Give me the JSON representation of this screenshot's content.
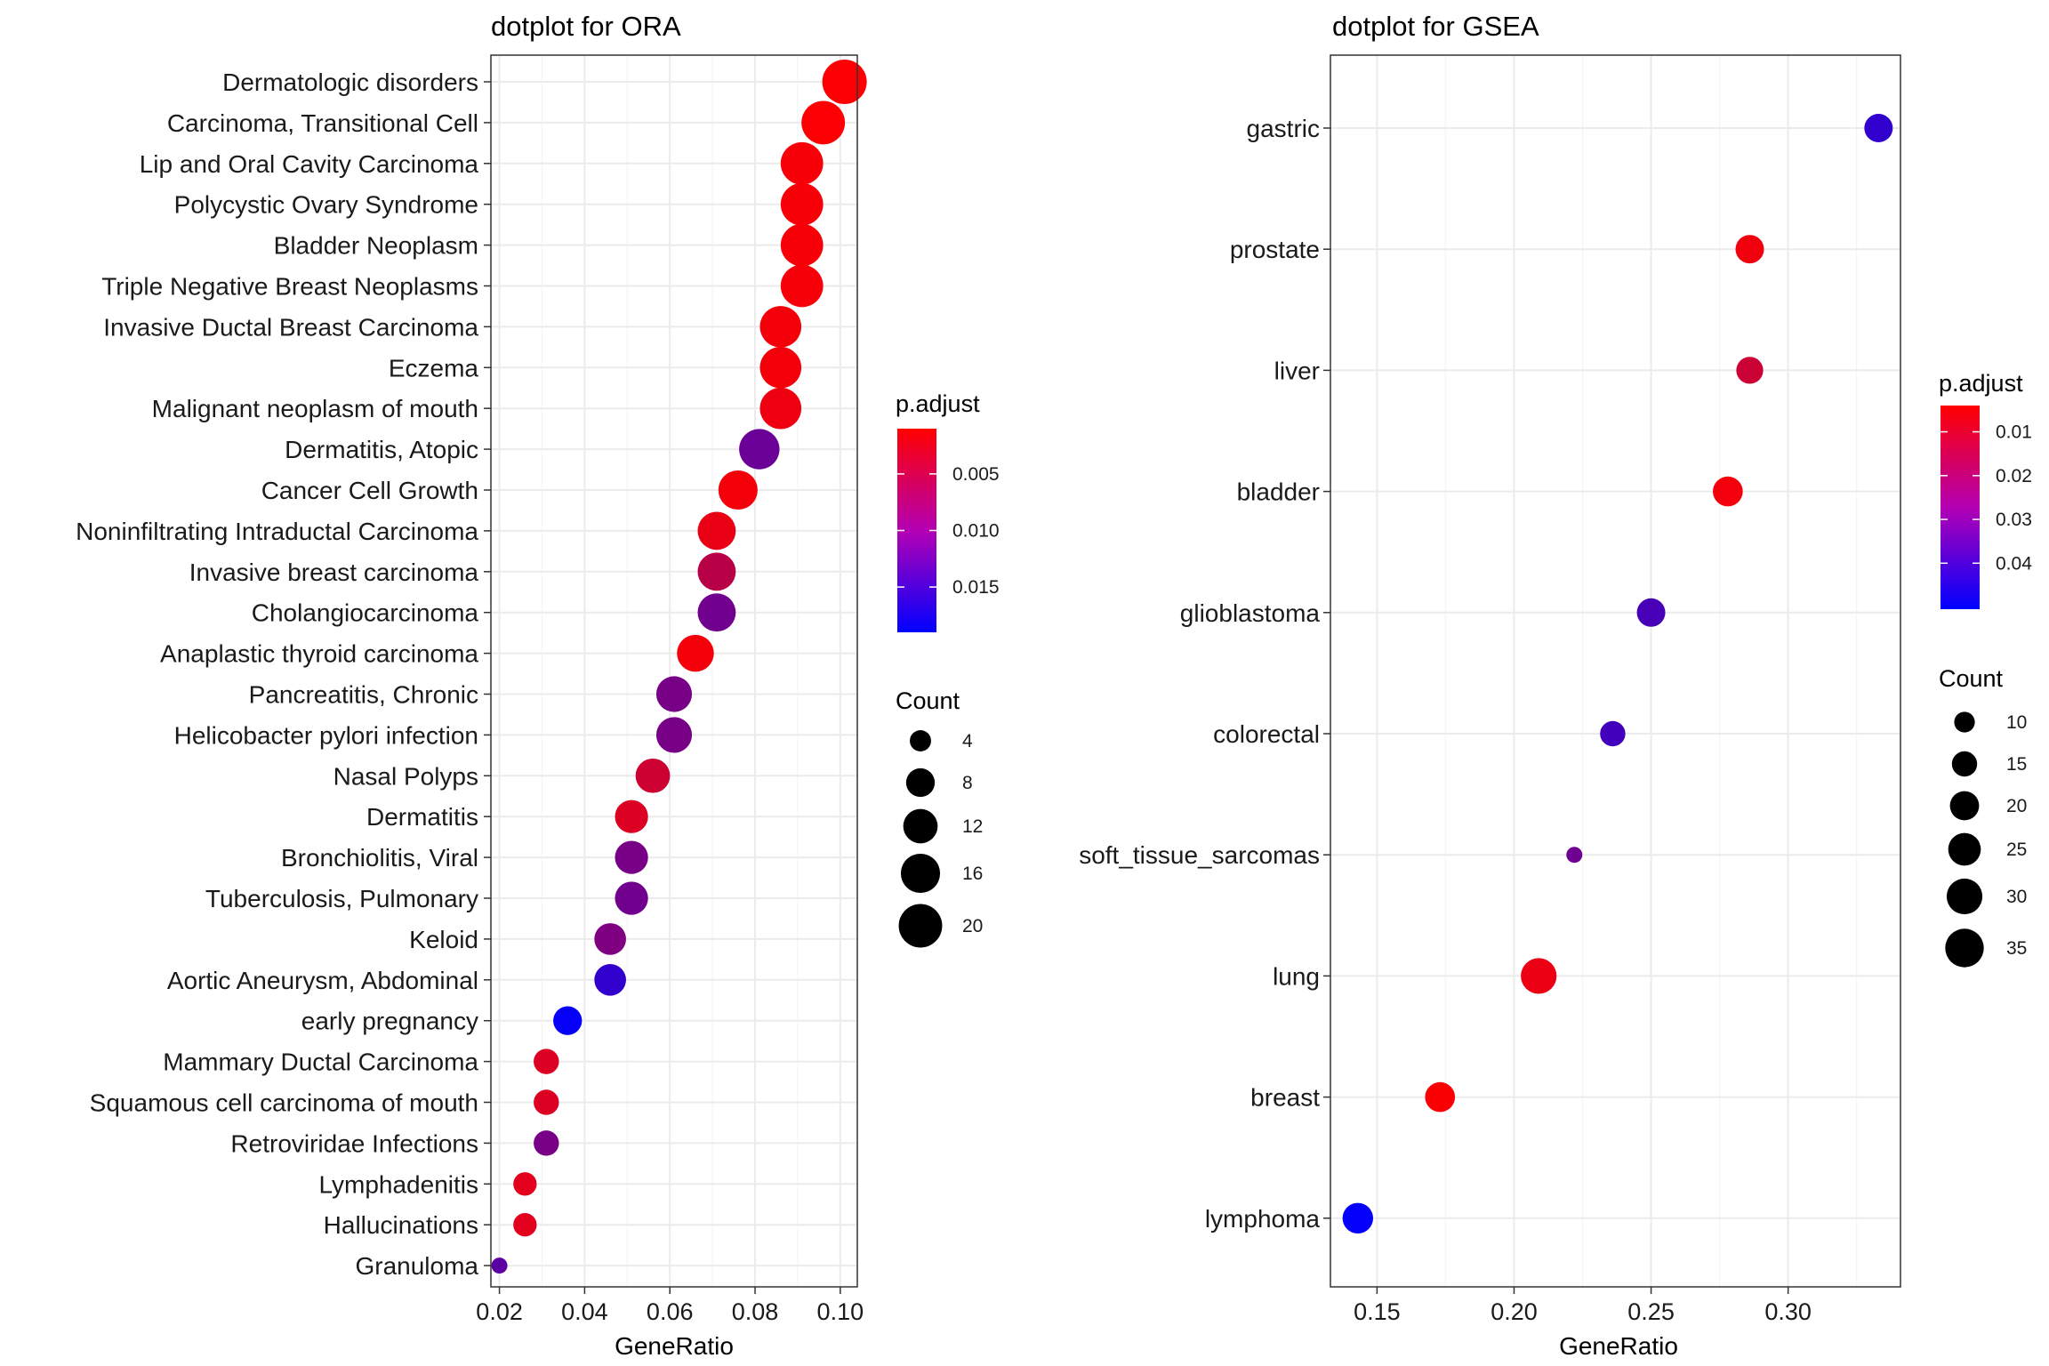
{
  "chart_data": [
    {
      "type": "scatter",
      "title": "dotplot for ORA",
      "xlabel": "GeneRatio",
      "ylabel": "",
      "xlim": [
        0.018,
        0.104
      ],
      "xticks": [
        "0.02",
        "0.04",
        "0.06",
        "0.08",
        "0.10"
      ],
      "color_scale": {
        "title": "p.adjust",
        "low_color": "#ff0000",
        "high_color": "#0000ff",
        "range": [
          0.001,
          0.019
        ],
        "ticks": [
          "0.005",
          "0.010",
          "0.015"
        ]
      },
      "size_scale": {
        "title": "Count",
        "range": [
          2,
          21
        ],
        "ticks": [
          "4",
          "8",
          "12",
          "16",
          "20"
        ]
      },
      "points": [
        {
          "label": "Dermatologic disorders",
          "x": 0.101,
          "count": 21,
          "p": 0.0012
        },
        {
          "label": "Carcinoma, Transitional Cell",
          "x": 0.096,
          "count": 20,
          "p": 0.0012
        },
        {
          "label": "Lip and Oral Cavity Carcinoma",
          "x": 0.091,
          "count": 19,
          "p": 0.0015
        },
        {
          "label": "Polycystic Ovary Syndrome",
          "x": 0.091,
          "count": 19,
          "p": 0.0015
        },
        {
          "label": "Bladder Neoplasm",
          "x": 0.091,
          "count": 19,
          "p": 0.0015
        },
        {
          "label": "Triple Negative Breast Neoplasms",
          "x": 0.091,
          "count": 19,
          "p": 0.0016
        },
        {
          "label": "Invasive Ductal Breast Carcinoma",
          "x": 0.086,
          "count": 18,
          "p": 0.0018
        },
        {
          "label": "Eczema",
          "x": 0.086,
          "count": 18,
          "p": 0.0018
        },
        {
          "label": "Malignant neoplasm of mouth",
          "x": 0.086,
          "count": 18,
          "p": 0.0022
        },
        {
          "label": "Dermatitis, Atopic",
          "x": 0.081,
          "count": 17,
          "p": 0.0115
        },
        {
          "label": "Cancer Cell Growth",
          "x": 0.076,
          "count": 16,
          "p": 0.0018
        },
        {
          "label": "Noninfiltrating Intraductal Carcinoma",
          "x": 0.071,
          "count": 15,
          "p": 0.0025
        },
        {
          "label": "Invasive breast carcinoma",
          "x": 0.071,
          "count": 15,
          "p": 0.006
        },
        {
          "label": "Cholangiocarcinoma",
          "x": 0.071,
          "count": 15,
          "p": 0.011
        },
        {
          "label": "Anaplastic thyroid carcinoma",
          "x": 0.066,
          "count": 14,
          "p": 0.0018
        },
        {
          "label": "Pancreatitis, Chronic",
          "x": 0.061,
          "count": 13,
          "p": 0.0105
        },
        {
          "label": "Helicobacter pylori infection",
          "x": 0.061,
          "count": 13,
          "p": 0.0105
        },
        {
          "label": "Nasal Polyps",
          "x": 0.056,
          "count": 12,
          "p": 0.0045
        },
        {
          "label": "Dermatitis",
          "x": 0.051,
          "count": 11,
          "p": 0.0035
        },
        {
          "label": "Bronchiolitis, Viral",
          "x": 0.051,
          "count": 11,
          "p": 0.0105
        },
        {
          "label": "Tuberculosis, Pulmonary",
          "x": 0.051,
          "count": 11,
          "p": 0.011
        },
        {
          "label": "Keloid",
          "x": 0.046,
          "count": 10,
          "p": 0.01
        },
        {
          "label": "Aortic Aneurysm, Abdominal",
          "x": 0.046,
          "count": 10,
          "p": 0.0155
        },
        {
          "label": "early pregnancy",
          "x": 0.036,
          "count": 8,
          "p": 0.0185
        },
        {
          "label": "Mammary Ductal Carcinoma",
          "x": 0.031,
          "count": 6,
          "p": 0.0035
        },
        {
          "label": "Squamous cell carcinoma of mouth",
          "x": 0.031,
          "count": 6,
          "p": 0.0035
        },
        {
          "label": "Retroviridae Infections",
          "x": 0.031,
          "count": 6,
          "p": 0.0105
        },
        {
          "label": "Lymphadenitis",
          "x": 0.026,
          "count": 5,
          "p": 0.003
        },
        {
          "label": "Hallucinations",
          "x": 0.026,
          "count": 5,
          "p": 0.003
        },
        {
          "label": "Granuloma",
          "x": 0.02,
          "count": 2,
          "p": 0.0125
        }
      ]
    },
    {
      "type": "scatter",
      "title": "dotplot for GSEA",
      "xlabel": "GeneRatio",
      "ylabel": "",
      "xlim": [
        0.133,
        0.341
      ],
      "xticks": [
        "0.15",
        "0.20",
        "0.25",
        "0.30"
      ],
      "color_scale": {
        "title": "p.adjust",
        "low_color": "#ff0000",
        "high_color": "#0000ff",
        "range": [
          0.004,
          0.0505
        ],
        "ticks": [
          "0.01",
          "0.02",
          "0.03",
          "0.04"
        ]
      },
      "size_scale": {
        "title": "Count",
        "range": [
          6,
          36
        ],
        "ticks": [
          "10",
          "15",
          "20",
          "25",
          "30",
          "35"
        ]
      },
      "points": [
        {
          "label": "gastric",
          "x": 0.333,
          "count": 19,
          "p": 0.0415
        },
        {
          "label": "prostate",
          "x": 0.286,
          "count": 19,
          "p": 0.0065
        },
        {
          "label": "liver",
          "x": 0.286,
          "count": 17,
          "p": 0.0135
        },
        {
          "label": "bladder",
          "x": 0.278,
          "count": 21,
          "p": 0.0062
        },
        {
          "label": "glioblastoma",
          "x": 0.25,
          "count": 19,
          "p": 0.0375
        },
        {
          "label": "colorectal",
          "x": 0.236,
          "count": 15,
          "p": 0.0385
        },
        {
          "label": "soft_tissue_sarcomas",
          "x": 0.222,
          "count": 6,
          "p": 0.03
        },
        {
          "label": "lung",
          "x": 0.209,
          "count": 30,
          "p": 0.0075
        },
        {
          "label": "breast",
          "x": 0.173,
          "count": 21,
          "p": 0.005
        },
        {
          "label": "lymphoma",
          "x": 0.143,
          "count": 22,
          "p": 0.0495
        }
      ]
    }
  ]
}
